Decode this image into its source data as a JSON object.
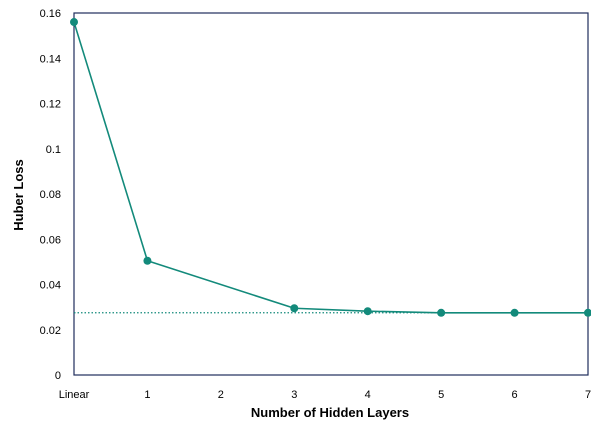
{
  "chart_data": {
    "type": "line",
    "title": "",
    "xlabel": "Number of Hidden Layers",
    "ylabel": "Huber Loss",
    "x_categories": [
      "Linear",
      "1",
      "2",
      "3",
      "4",
      "5",
      "6",
      "7"
    ],
    "ylim": [
      0,
      0.16
    ],
    "yticks": [
      0,
      0.02,
      0.04,
      0.06,
      0.08,
      0.1,
      0.12,
      0.14,
      0.16
    ],
    "ytick_labels": [
      "0",
      "0.02",
      "0.04",
      "0.06",
      "0.08",
      "0.1",
      "0.12",
      "0.14",
      "0.16"
    ],
    "grid": false,
    "legend": "none",
    "series": [
      {
        "x": [
          "Linear",
          "1",
          "3",
          "4",
          "5",
          "6",
          "7"
        ],
        "values": [
          0.156,
          0.0505,
          0.0295,
          0.0282,
          0.0275,
          0.0275,
          0.0275
        ],
        "color": "#138a7b",
        "style": "solid",
        "marker": "circle"
      }
    ],
    "reference_line": {
      "value": 0.0275,
      "color": "#138a7b",
      "style": "dotted"
    },
    "colors": {
      "frame": "#1f2d5c",
      "series": "#138a7b"
    }
  }
}
